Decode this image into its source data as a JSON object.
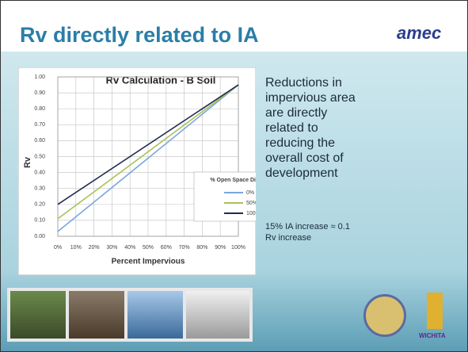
{
  "slide": {
    "title": "Rv directly related to IA",
    "logo": "amec",
    "body": "Reductions in impervious area are directly related to reducing the overall cost of development",
    "note": "15% IA increase ≈ 0.1 Rv increase",
    "footer_logo": "WICHITA"
  },
  "chart_data": {
    "type": "line",
    "title": "Rv Calculation - B Soil",
    "x_label": "Percent Impervious",
    "y_label": "Rv",
    "legend_title": "% Open Space Disturbed",
    "x": [
      0,
      100
    ],
    "series": [
      {
        "name": "0%",
        "color": "#7aa6dc",
        "values": [
          0.03,
          0.95
        ]
      },
      {
        "name": "50%",
        "color": "#a9c255",
        "values": [
          0.11,
          0.95
        ]
      },
      {
        "name": "100%",
        "color": "#1f2a50",
        "values": [
          0.2,
          0.95
        ]
      }
    ],
    "xlim": [
      0,
      100
    ],
    "xticks": [
      {
        "value": 0,
        "label": "0%"
      },
      {
        "value": 10,
        "label": "10%"
      },
      {
        "value": 20,
        "label": "20%"
      },
      {
        "value": 30,
        "label": "30%"
      },
      {
        "value": 40,
        "label": "40%"
      },
      {
        "value": 50,
        "label": "50%"
      },
      {
        "value": 60,
        "label": "60%"
      },
      {
        "value": 70,
        "label": "70%"
      },
      {
        "value": 80,
        "label": "80%"
      },
      {
        "value": 90,
        "label": "90%"
      },
      {
        "value": 100,
        "label": "100%"
      }
    ],
    "ylim": [
      0,
      1
    ],
    "yticks": [
      {
        "value": 0,
        "label": "0.00"
      },
      {
        "value": 0.1,
        "label": "0.10"
      },
      {
        "value": 0.2,
        "label": "0.20"
      },
      {
        "value": 0.3,
        "label": "0.30"
      },
      {
        "value": 0.4,
        "label": "0.40"
      },
      {
        "value": 0.5,
        "label": "0.50"
      },
      {
        "value": 0.6,
        "label": "0.60"
      },
      {
        "value": 0.7,
        "label": "0.70"
      },
      {
        "value": 0.8,
        "label": "0.80"
      },
      {
        "value": 0.9,
        "label": "0.90"
      },
      {
        "value": 1,
        "label": "1.00"
      }
    ],
    "grid": true
  }
}
